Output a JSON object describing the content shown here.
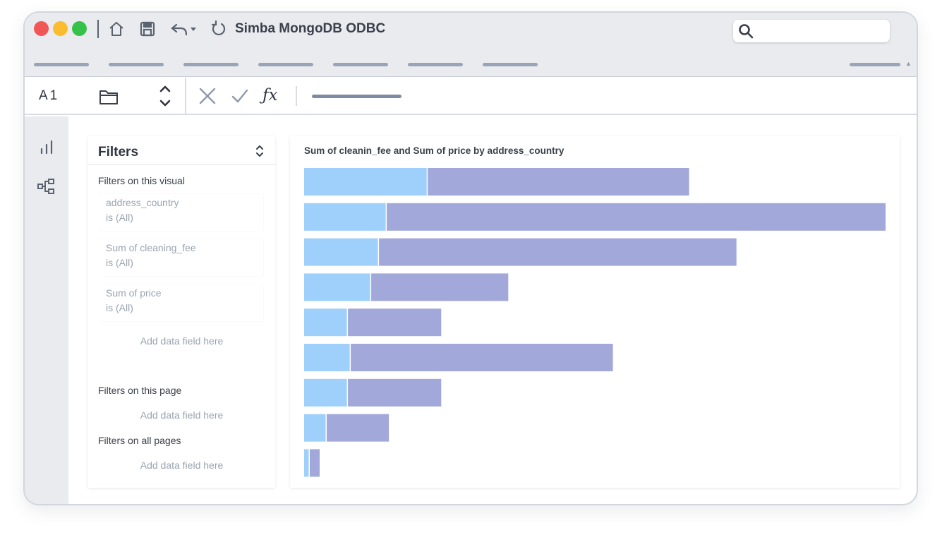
{
  "window": {
    "title": "Simba MongoDB ODBC",
    "search_placeholder": ""
  },
  "formula_bar": {
    "cell_ref": "A1",
    "fx_label": "ƒx"
  },
  "filters": {
    "title": "Filters",
    "visual_section": "Filters on this visual",
    "cards": [
      {
        "field": "address_country",
        "condition": "is (All)"
      },
      {
        "field": "Sum of cleaning_fee",
        "condition": "is (All)"
      },
      {
        "field": "Sum of price",
        "condition": "is (All)"
      }
    ],
    "add_field_visual": "Add data field here",
    "page_section": "Filters on this page",
    "add_field_page": "Add data field here",
    "all_pages_section": "Filters on all pages",
    "add_field_all": "Add data field here"
  },
  "icons": [
    "home-icon",
    "save-icon",
    "undo-icon",
    "refresh-icon",
    "search-icon",
    "folder-icon",
    "up-down-chevron-icon",
    "cancel-icon",
    "confirm-icon",
    "bar-chart-icon",
    "hierarchy-icon"
  ],
  "colors": {
    "cleaning_fee": "#9fd0fb",
    "price": "#a2a8d9"
  },
  "chart_data": {
    "type": "bar",
    "orientation": "horizontal",
    "stacked": true,
    "title": "Sum of cleanin_fee and Sum of price by address_country",
    "categories": [
      "",
      "",
      "",
      "",
      "",
      "",
      "",
      "",
      ""
    ],
    "series": [
      {
        "values": [
          17.5,
          11.7,
          10.6,
          9.5,
          6.2,
          6.6,
          6.2,
          3.2,
          0.8
        ]
      },
      {
        "values": [
          37.0,
          70.6,
          50.6,
          19.4,
          13.2,
          37.1,
          13.2,
          8.8,
          1.4
        ]
      }
    ],
    "xlim": [
      0,
      82.3
    ],
    "grid": false,
    "legend": "none"
  }
}
